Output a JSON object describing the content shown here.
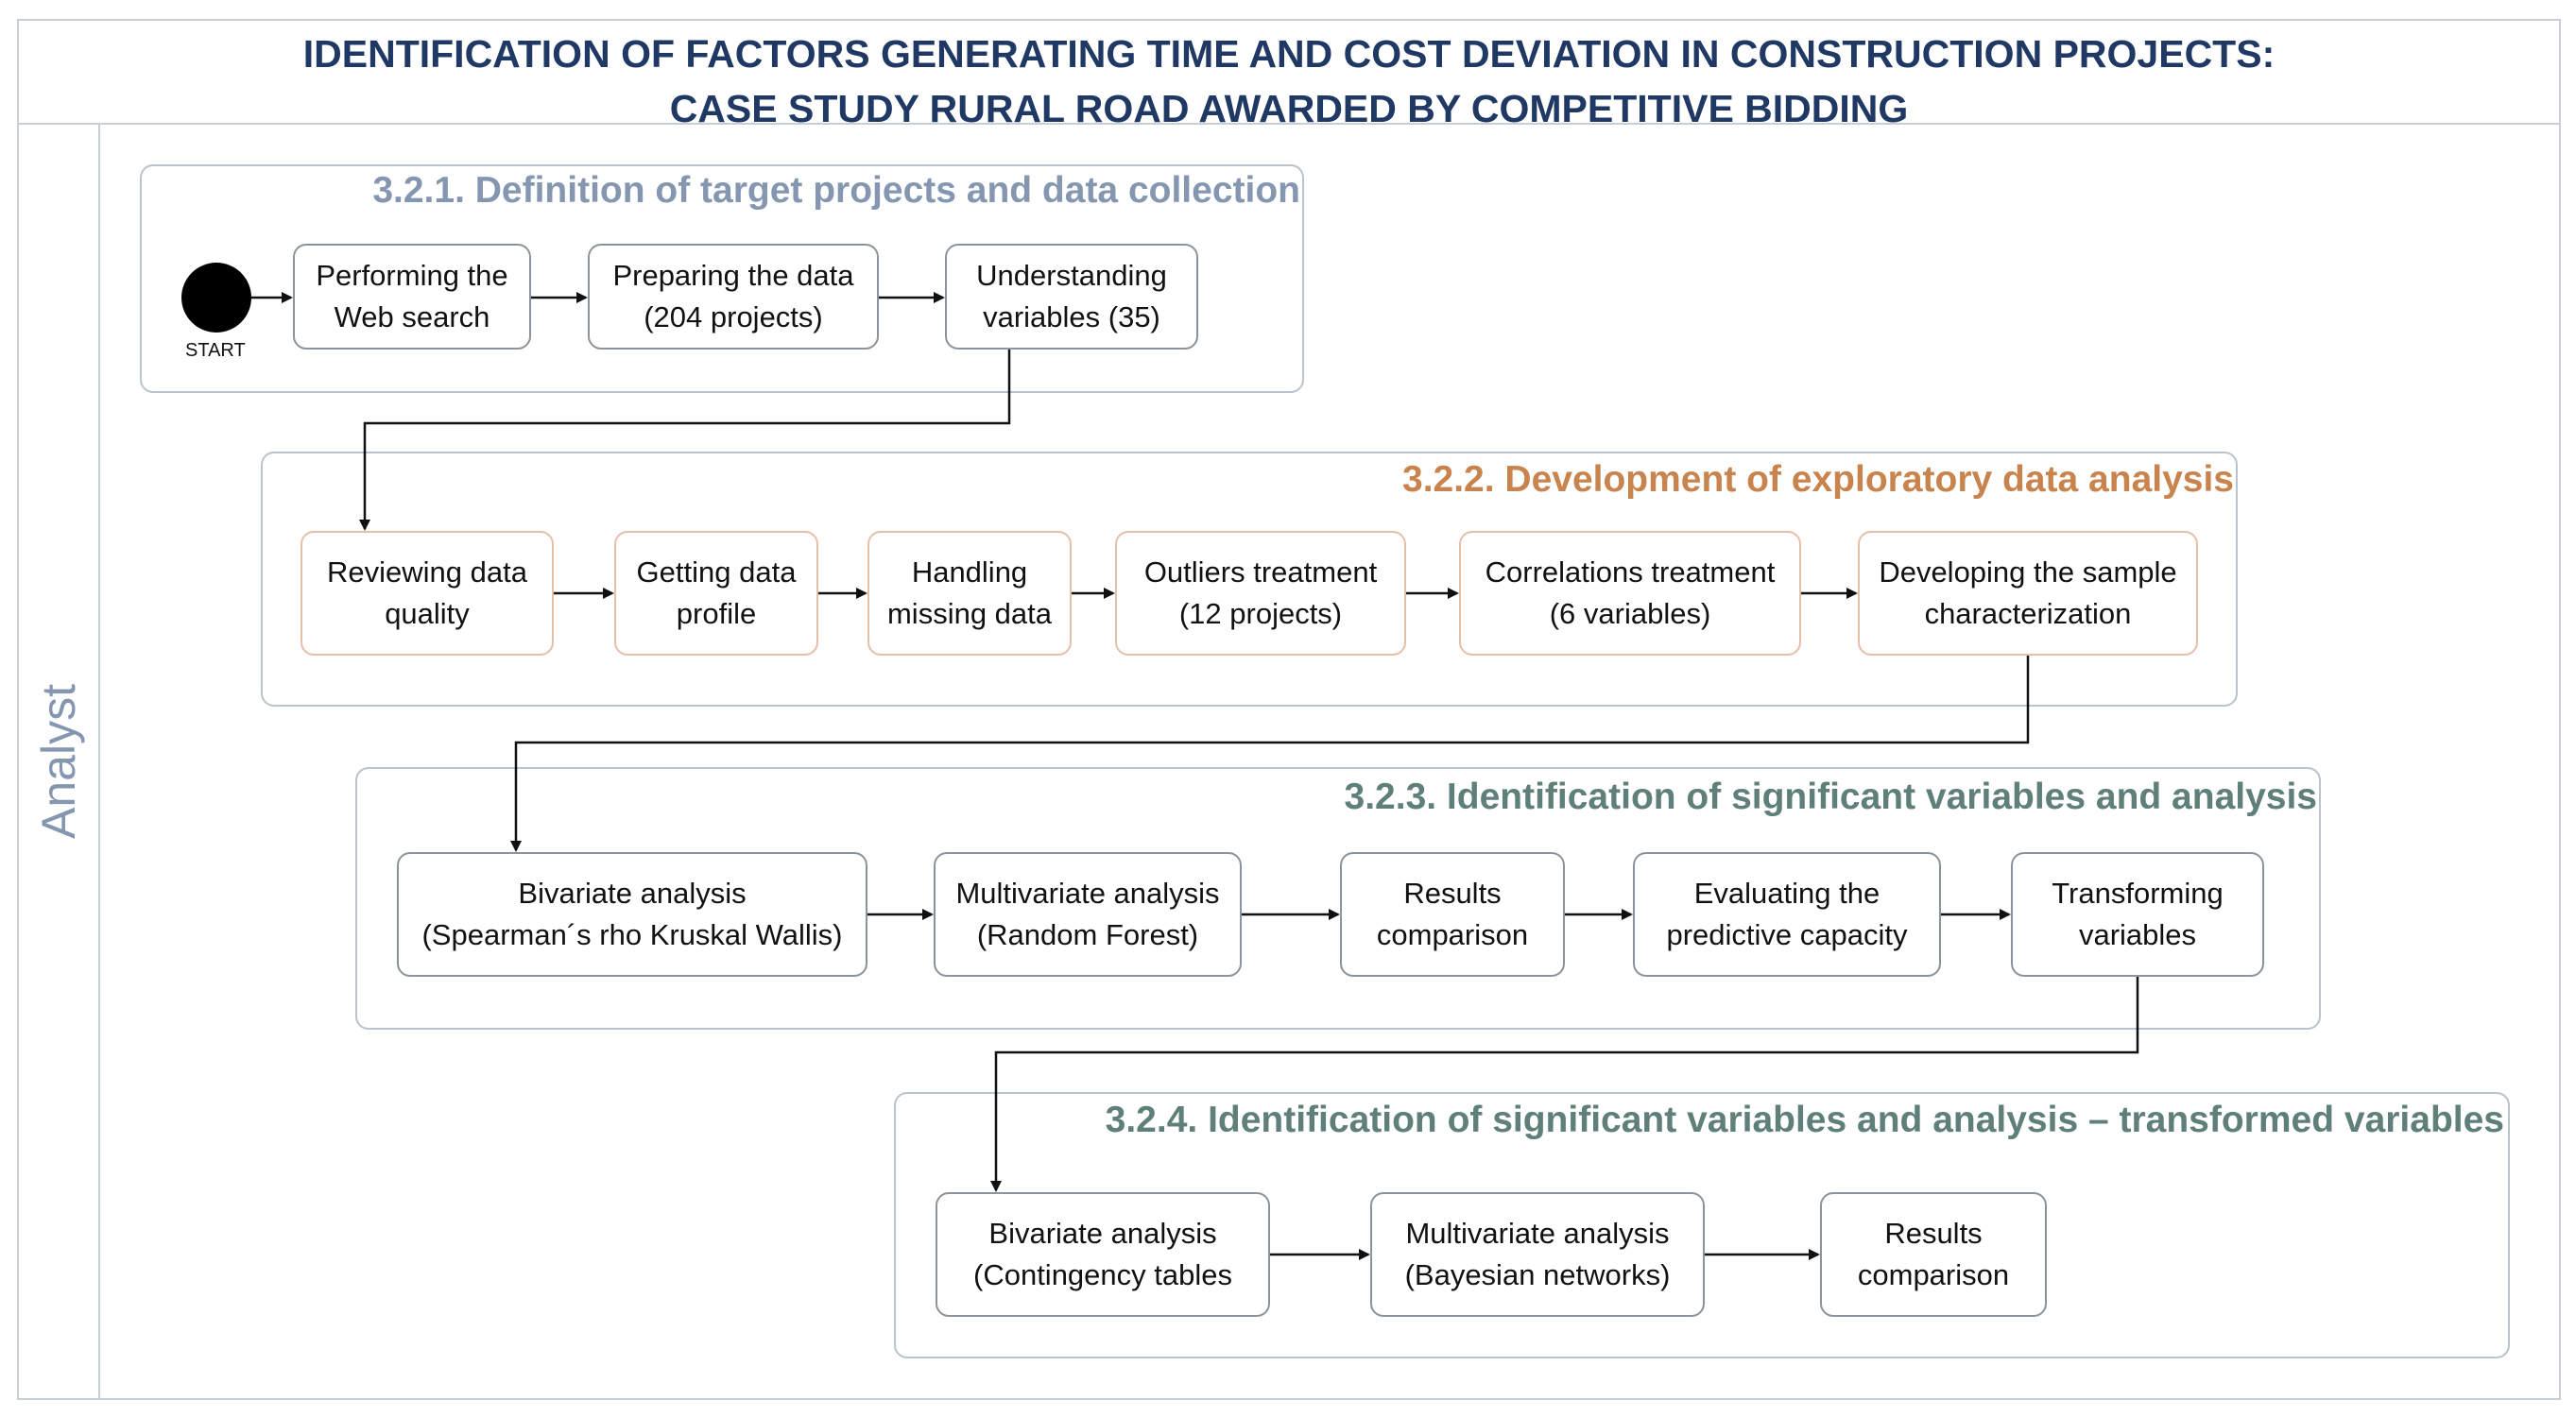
{
  "title": {
    "line1": "IDENTIFICATION OF FACTORS GENERATING TIME AND COST DEVIATION IN CONSTRUCTION PROJECTS:",
    "line2": "CASE STUDY RURAL ROAD AWARDED BY COMPETITIVE BIDDING"
  },
  "lane_label": "Analyst",
  "start_label": "START",
  "colors": {
    "title": "#1f3864",
    "section_slate": "#8496b0",
    "section_orange": "#c9834d",
    "section_teal": "#5f7f7b"
  },
  "sections": [
    {
      "title": "3.2.1. Definition of target projects and data collection",
      "steps": [
        "Performing the\nWeb search",
        "Preparing the data\n(204 projects)",
        "Understanding\nvariables (35)"
      ]
    },
    {
      "title": "3.2.2. Development of exploratory data analysis",
      "steps": [
        "Reviewing data\nquality",
        "Getting data\nprofile",
        "Handling\nmissing data",
        "Outliers  treatment\n(12 projects)",
        "Correlations  treatment\n(6 variables)",
        "Developing the sample\ncharacterization"
      ]
    },
    {
      "title": "3.2.3. Identification of significant variables and analysis",
      "steps": [
        "Bivariate analysis\n(Spearman´s rho Kruskal Wallis)",
        "Multivariate analysis\n(Random Forest)",
        "Results\ncomparison",
        "Evaluating the\npredictive capacity",
        "Transforming\nvariables"
      ]
    },
    {
      "title": "3.2.4. Identification of significant variables and analysis – transformed variables",
      "steps": [
        "Bivariate analysis\n(Contingency tables",
        "Multivariate analysis\n(Bayesian networks)",
        "Results\ncomparison"
      ]
    }
  ]
}
